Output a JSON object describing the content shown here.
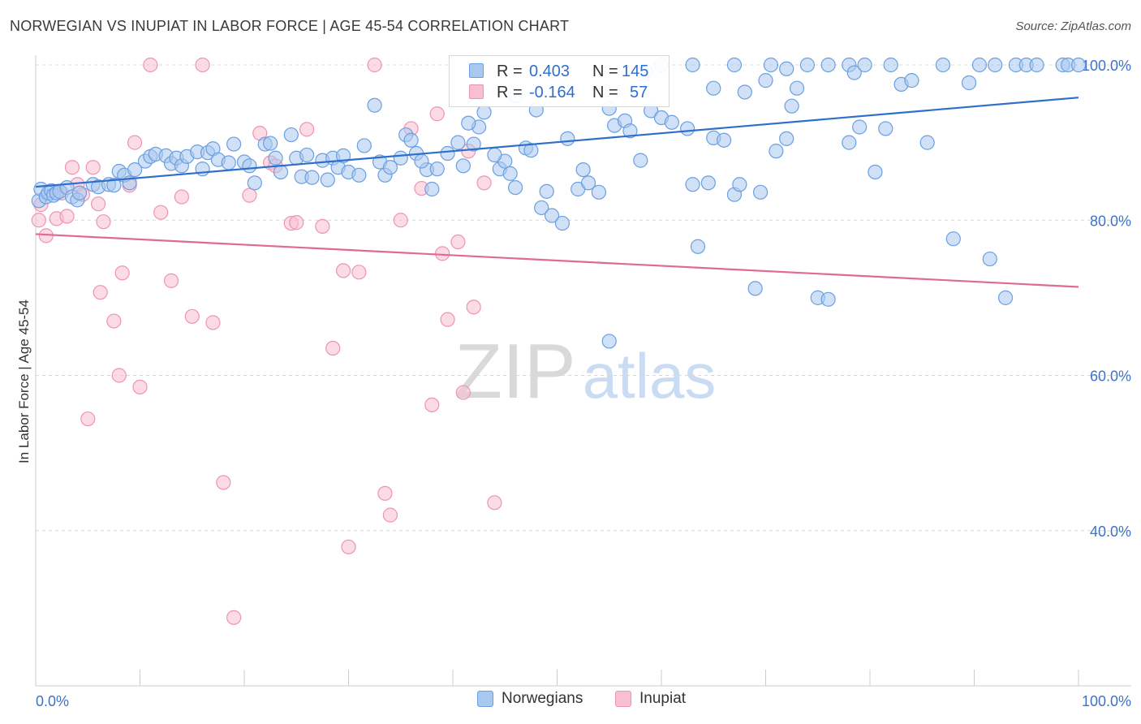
{
  "title": "NORWEGIAN VS INUPIAT IN LABOR FORCE | AGE 45-54 CORRELATION CHART",
  "source": "Source: ZipAtlas.com",
  "watermark": {
    "zip": "ZIP",
    "atlas": "atlas"
  },
  "colors": {
    "norwegians_fill": "#a9c8f0",
    "norwegians_stroke": "#6a9fe0",
    "norwegians_line": "#2f6fcc",
    "inupiat_fill": "#f8bfd0",
    "inupiat_stroke": "#ee94b0",
    "inupiat_line": "#e06a96",
    "tick_label": "#3c72c8",
    "grid": "#d8d8d8"
  },
  "legend": {
    "rows": [
      {
        "r_label": "R =",
        "r_value": "0.403",
        "n_label": "N =",
        "n_value": "145"
      },
      {
        "r_label": "R =",
        "r_value": "-0.164",
        "n_label": "N =",
        "n_value": "57"
      }
    ]
  },
  "bottom_legend": [
    "Norwegians",
    "Inupiat"
  ],
  "chart_data": {
    "type": "scatter",
    "title": "NORWEGIAN VS INUPIAT IN LABOR FORCE | AGE 45-54 CORRELATION CHART",
    "xlabel": "",
    "ylabel": "In Labor Force | Age 45-54",
    "xlim": [
      0,
      100
    ],
    "ylim": [
      20,
      100
    ],
    "x_tick_labels": [
      "0.0%",
      "100.0%"
    ],
    "y_tick_labels": [
      "100.0%",
      "80.0%",
      "60.0%",
      "40.0%"
    ],
    "y_ticks": [
      100,
      80,
      60,
      40
    ],
    "grid": true,
    "legend_position": "top-center",
    "series": [
      {
        "name": "Norwegians",
        "r": 0.403,
        "n": 145,
        "trend": {
          "x": [
            0,
            100
          ],
          "y": [
            84.3,
            95.8
          ]
        },
        "points": [
          [
            0.3,
            82.5
          ],
          [
            0.5,
            84.0
          ],
          [
            1.0,
            83.0
          ],
          [
            1.2,
            83.5
          ],
          [
            1.5,
            83.8
          ],
          [
            1.7,
            83.2
          ],
          [
            2.0,
            83.5
          ],
          [
            2.3,
            83.7
          ],
          [
            3.0,
            84.2
          ],
          [
            3.5,
            83.0
          ],
          [
            4.0,
            82.6
          ],
          [
            4.2,
            83.5
          ],
          [
            5.5,
            84.6
          ],
          [
            6.0,
            84.3
          ],
          [
            7.0,
            84.6
          ],
          [
            7.5,
            84.5
          ],
          [
            8.0,
            86.3
          ],
          [
            8.5,
            85.8
          ],
          [
            9.0,
            84.8
          ],
          [
            9.5,
            86.5
          ],
          [
            10.5,
            87.6
          ],
          [
            11.0,
            88.2
          ],
          [
            11.5,
            88.5
          ],
          [
            12.5,
            88.3
          ],
          [
            13.0,
            87.3
          ],
          [
            13.5,
            88.0
          ],
          [
            14.0,
            87.0
          ],
          [
            14.5,
            88.2
          ],
          [
            15.5,
            88.8
          ],
          [
            16.0,
            86.6
          ],
          [
            16.5,
            88.7
          ],
          [
            17.0,
            89.2
          ],
          [
            17.5,
            87.8
          ],
          [
            18.5,
            87.4
          ],
          [
            19.0,
            89.8
          ],
          [
            20.0,
            87.5
          ],
          [
            20.5,
            87.0
          ],
          [
            21.0,
            84.8
          ],
          [
            22.0,
            89.8
          ],
          [
            22.5,
            89.9
          ],
          [
            23.0,
            88.0
          ],
          [
            23.5,
            86.2
          ],
          [
            24.5,
            91.0
          ],
          [
            25.0,
            88.0
          ],
          [
            25.5,
            85.6
          ],
          [
            26.0,
            88.4
          ],
          [
            26.5,
            85.5
          ],
          [
            27.5,
            87.7
          ],
          [
            28.0,
            85.2
          ],
          [
            28.5,
            88.0
          ],
          [
            29.0,
            86.8
          ],
          [
            29.5,
            88.3
          ],
          [
            30.0,
            86.2
          ],
          [
            31.0,
            85.8
          ],
          [
            31.5,
            89.6
          ],
          [
            32.5,
            94.8
          ],
          [
            33.0,
            87.5
          ],
          [
            33.5,
            85.8
          ],
          [
            34.0,
            86.8
          ],
          [
            35.0,
            88.0
          ],
          [
            35.5,
            91.0
          ],
          [
            36.0,
            90.3
          ],
          [
            36.5,
            88.6
          ],
          [
            37.5,
            86.5
          ],
          [
            38.0,
            84.0
          ],
          [
            38.5,
            86.6
          ],
          [
            39.5,
            88.6
          ],
          [
            40.5,
            90.0
          ],
          [
            41.0,
            87.0
          ],
          [
            42.0,
            89.8
          ],
          [
            42.5,
            92.0
          ],
          [
            43.0,
            93.9
          ],
          [
            44.5,
            86.6
          ],
          [
            45.0,
            87.6
          ],
          [
            45.5,
            86.0
          ],
          [
            46.0,
            84.2
          ],
          [
            47.0,
            89.3
          ],
          [
            47.5,
            89.0
          ],
          [
            48.5,
            81.6
          ],
          [
            49.0,
            83.7
          ],
          [
            49.5,
            80.6
          ],
          [
            50.5,
            79.6
          ],
          [
            51.0,
            90.5
          ],
          [
            52.0,
            84.0
          ],
          [
            52.5,
            86.5
          ],
          [
            53.0,
            84.8
          ],
          [
            54.0,
            83.6
          ],
          [
            55.0,
            94.4
          ],
          [
            55.5,
            92.2
          ],
          [
            56.5,
            92.8
          ],
          [
            57.0,
            91.5
          ],
          [
            58.0,
            87.7
          ],
          [
            59.0,
            94.1
          ],
          [
            60.0,
            93.2
          ],
          [
            61.0,
            92.6
          ],
          [
            62.5,
            91.8
          ],
          [
            63.0,
            84.6
          ],
          [
            63.5,
            76.6
          ],
          [
            64.5,
            84.8
          ],
          [
            65.0,
            90.6
          ],
          [
            66.0,
            90.3
          ],
          [
            67.0,
            83.3
          ],
          [
            67.5,
            84.6
          ],
          [
            68.0,
            96.5
          ],
          [
            69.0,
            71.2
          ],
          [
            69.5,
            83.6
          ],
          [
            70.0,
            98.0
          ],
          [
            71.0,
            88.9
          ],
          [
            72.0,
            90.5
          ],
          [
            72.5,
            94.7
          ],
          [
            74.0,
            100.0
          ],
          [
            75.0,
            70.0
          ],
          [
            76.0,
            100.0
          ],
          [
            76.0,
            69.8
          ],
          [
            78.0,
            100.0
          ],
          [
            78.0,
            90.0
          ],
          [
            78.5,
            99.0
          ],
          [
            79.5,
            100.0
          ],
          [
            79.0,
            92.0
          ],
          [
            80.5,
            86.2
          ],
          [
            81.5,
            91.8
          ],
          [
            82.0,
            100.0
          ],
          [
            83.0,
            97.5
          ],
          [
            84.0,
            98.0
          ],
          [
            85.5,
            90.0
          ],
          [
            87.0,
            100.0
          ],
          [
            88.0,
            77.6
          ],
          [
            89.5,
            97.7
          ],
          [
            90.5,
            100.0
          ],
          [
            91.5,
            75.0
          ],
          [
            92.0,
            100.0
          ],
          [
            93.0,
            70.0
          ],
          [
            94.0,
            100.0
          ],
          [
            95.0,
            100.0
          ],
          [
            96.0,
            100.0
          ],
          [
            98.5,
            100.0
          ],
          [
            99.0,
            100.0
          ],
          [
            100.0,
            100.0
          ],
          [
            63.0,
            100.0
          ],
          [
            60.0,
            100.0
          ],
          [
            65.0,
            97.0
          ],
          [
            41.5,
            92.5
          ],
          [
            48.0,
            94.2
          ],
          [
            44.0,
            88.4
          ],
          [
            37.0,
            87.6
          ],
          [
            46.0,
            96.0
          ],
          [
            58.5,
            99.2
          ],
          [
            67.0,
            100.0
          ],
          [
            70.5,
            100.0
          ],
          [
            72.0,
            99.5
          ],
          [
            73.0,
            97.0
          ],
          [
            55.0,
            64.4
          ]
        ]
      },
      {
        "name": "Inupiat",
        "r": -0.164,
        "n": 57,
        "trend": {
          "x": [
            0,
            100
          ],
          "y": [
            78.2,
            71.4
          ]
        },
        "points": [
          [
            0.3,
            80.0
          ],
          [
            0.5,
            82.0
          ],
          [
            1.0,
            78.0
          ],
          [
            2.0,
            80.2
          ],
          [
            2.5,
            83.5
          ],
          [
            3.0,
            80.5
          ],
          [
            3.5,
            86.8
          ],
          [
            4.0,
            84.6
          ],
          [
            4.5,
            83.3
          ],
          [
            5.0,
            54.4
          ],
          [
            5.5,
            86.8
          ],
          [
            6.0,
            82.1
          ],
          [
            6.2,
            70.7
          ],
          [
            6.5,
            79.8
          ],
          [
            7.5,
            67.0
          ],
          [
            8.0,
            60.0
          ],
          [
            8.3,
            73.2
          ],
          [
            9.0,
            84.5
          ],
          [
            9.5,
            90.0
          ],
          [
            10.0,
            58.5
          ],
          [
            11.0,
            100.0
          ],
          [
            12.0,
            81.0
          ],
          [
            13.0,
            72.2
          ],
          [
            14.0,
            83.0
          ],
          [
            15.0,
            67.6
          ],
          [
            16.0,
            100.0
          ],
          [
            17.0,
            66.8
          ],
          [
            18.0,
            46.2
          ],
          [
            19.0,
            28.8
          ],
          [
            20.5,
            83.2
          ],
          [
            21.5,
            91.2
          ],
          [
            22.5,
            87.4
          ],
          [
            23.0,
            87.0
          ],
          [
            24.5,
            79.6
          ],
          [
            25.0,
            79.7
          ],
          [
            26.0,
            91.7
          ],
          [
            27.5,
            79.2
          ],
          [
            28.5,
            63.5
          ],
          [
            29.5,
            73.5
          ],
          [
            30.0,
            37.9
          ],
          [
            31.0,
            73.3
          ],
          [
            32.5,
            100.0
          ],
          [
            33.5,
            44.8
          ],
          [
            34.0,
            42.0
          ],
          [
            35.0,
            80.0
          ],
          [
            36.0,
            91.8
          ],
          [
            37.0,
            84.1
          ],
          [
            38.0,
            56.2
          ],
          [
            38.5,
            93.7
          ],
          [
            39.0,
            75.7
          ],
          [
            39.5,
            67.2
          ],
          [
            40.5,
            77.2
          ],
          [
            41.0,
            57.8
          ],
          [
            41.5,
            88.9
          ],
          [
            42.0,
            68.8
          ],
          [
            43.0,
            84.8
          ],
          [
            44.0,
            43.6
          ]
        ]
      }
    ]
  }
}
